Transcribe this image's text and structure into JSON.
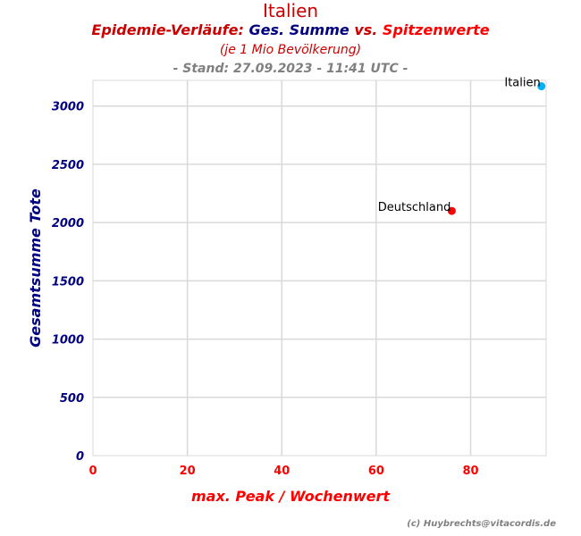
{
  "title": "Italien",
  "subtitle": {
    "part1": "Epidemie-Verläufe:",
    "part2": "Ges. Summe",
    "part3": "vs.",
    "part4": "Spitzenwerte"
  },
  "subtitle2": "(je 1 Mio Bevölkerung)",
  "subtitle3": "- Stand: 27.09.2023 - 11:41 UTC -",
  "credit": "(c) Huybrechts@vitacordis.de",
  "colors": {
    "grid": "#d9d9d9",
    "italien": "#00b0f0",
    "deutschland": "#ff0000"
  },
  "chart_data": {
    "type": "scatter",
    "xlabel": "max. Peak / Wochenwert",
    "ylabel": "Gesamtsumme Tote",
    "xlim": [
      0,
      96
    ],
    "ylim": [
      0,
      3220
    ],
    "xticks": [
      0,
      20,
      40,
      60,
      80
    ],
    "yticks": [
      0,
      500,
      1000,
      1500,
      2000,
      2500,
      3000
    ],
    "grid": true,
    "points": [
      {
        "label": "Italien",
        "x": 95,
        "y": 3170,
        "color": "#00b0f0"
      },
      {
        "label": "Deutschland",
        "x": 76,
        "y": 2100,
        "color": "#ff0000"
      }
    ]
  }
}
